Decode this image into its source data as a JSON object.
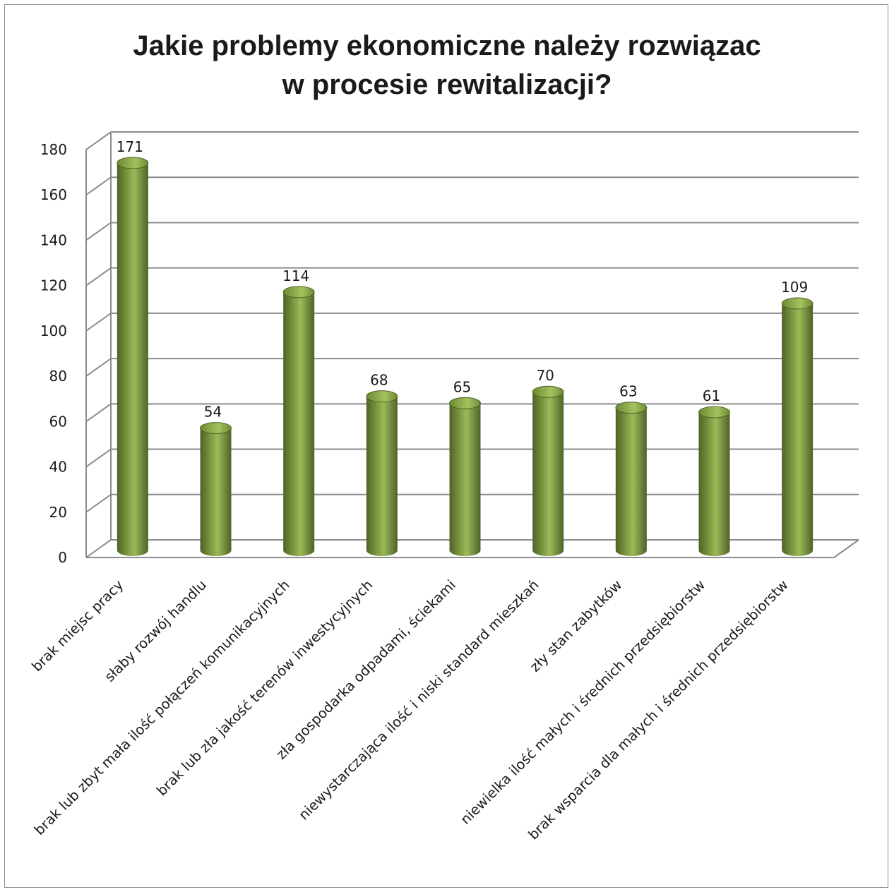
{
  "chart_data": {
    "type": "bar",
    "title_lines": [
      "Jakie problemy ekonomiczne należy rozwiązac",
      "w procesie rewitalizacji?"
    ],
    "categories": [
      "brak miejsc pracy",
      "słaby rozwój handlu",
      "brak lub zbyt mała ilość połączeń komunikacyjnych",
      "brak lub zła jakość terenów inwestycyjnych",
      "zła gospodarka odpadami, ściekami",
      "niewystarczająca ilość i niski standard mieszkań",
      "zły stan zabytków",
      "niewielka ilość małych i średnich przedsiębiorstw",
      "brak wsparcia dla małych i średnich przedsiębiorstw"
    ],
    "values": [
      171,
      54,
      114,
      68,
      65,
      70,
      63,
      61,
      109
    ],
    "ylim": [
      0,
      180
    ],
    "yticks": [
      0,
      20,
      40,
      60,
      80,
      100,
      120,
      140,
      160,
      180
    ],
    "grid": true,
    "data_labels": true,
    "style": "3d-cylinder",
    "colors": {
      "bar": "#77933c",
      "bar_dark": "#4f6228",
      "bar_light": "#9bbb59",
      "grid": "#8c8c8c"
    }
  }
}
